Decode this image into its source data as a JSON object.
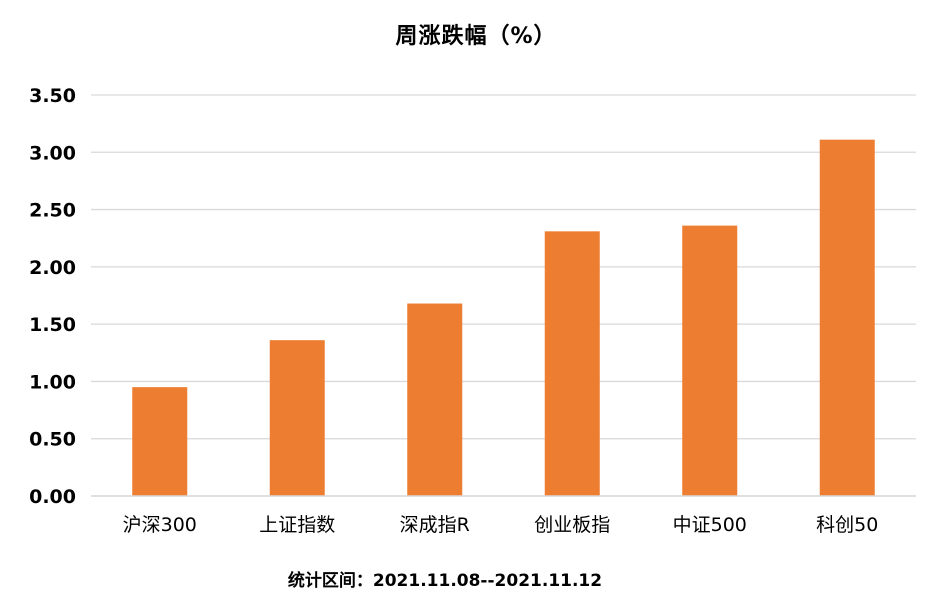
{
  "chart_data": {
    "type": "bar",
    "title": "周涨跌幅（%）",
    "categories": [
      "沪深300",
      "上证指数",
      "深成指R",
      "创业板指",
      "中证500",
      "科创50"
    ],
    "series": [
      {
        "values": [
          0.95,
          1.36,
          1.68,
          2.31,
          2.36,
          3.11
        ]
      }
    ],
    "ylim": [
      0,
      3.5
    ],
    "yticks": [
      "0.00",
      "0.50",
      "1.00",
      "1.50",
      "2.00",
      "2.50",
      "3.00",
      "3.50"
    ],
    "grid": true,
    "bar_color": "#ED7D31",
    "grid_color": "#D9D9D9",
    "footnote": "统计区间：2021.11.08--2021.11.12"
  }
}
